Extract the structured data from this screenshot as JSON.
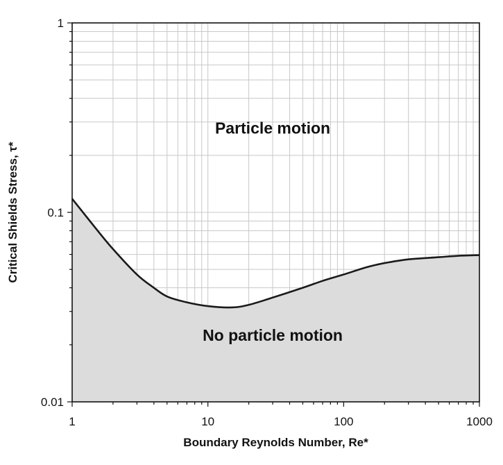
{
  "chart_data": {
    "type": "area",
    "x_scale": "log",
    "y_scale": "log",
    "xlim": [
      1,
      1000
    ],
    "ylim": [
      0.01,
      1
    ],
    "grid": true,
    "xlabel": "Boundary Reynolds Number, Re*",
    "ylabel": "Critical Shields Stress, τ*",
    "x_ticks": [
      1,
      10,
      100,
      1000
    ],
    "x_tick_labels": [
      "1",
      "10",
      "100",
      "1000"
    ],
    "y_ticks": [
      0.01,
      0.1,
      1
    ],
    "y_tick_labels": [
      "0.01",
      "0.1",
      "1"
    ],
    "annotations": [
      {
        "text": "Particle motion",
        "x": 30,
        "y": 0.26
      },
      {
        "text": "No particle motion",
        "x": 30,
        "y": 0.021
      }
    ],
    "series": [
      {
        "fill_below": true,
        "fill_color": "#dcdcdc",
        "line_color": "#1a1a1a",
        "x": [
          1,
          1.5,
          2,
          3,
          4,
          5,
          7,
          10,
          15,
          20,
          30,
          50,
          70,
          100,
          150,
          200,
          300,
          500,
          700,
          1000
        ],
        "y": [
          0.118,
          0.082,
          0.064,
          0.047,
          0.04,
          0.036,
          0.0335,
          0.032,
          0.0315,
          0.0325,
          0.0355,
          0.04,
          0.0435,
          0.047,
          0.0515,
          0.054,
          0.0565,
          0.058,
          0.059,
          0.0595
        ]
      }
    ]
  }
}
